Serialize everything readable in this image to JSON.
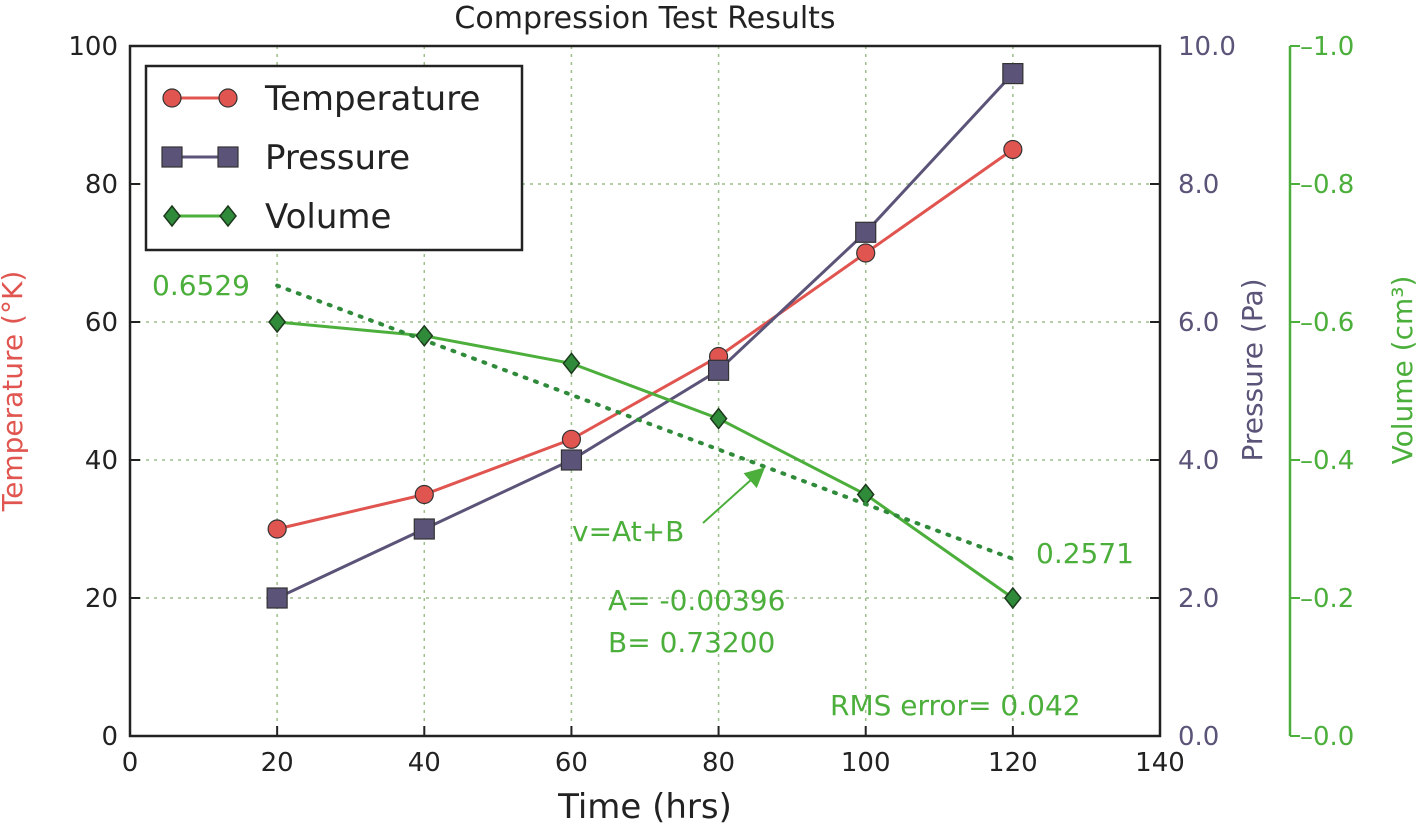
{
  "colors": {
    "temperature": "#e05550",
    "pressure": "#5b5478",
    "volume": "#4caf3c",
    "volume_marker": "#2f8a3a",
    "grid": "#9cbf8c",
    "axis": "#222222"
  },
  "chart_data": {
    "type": "line",
    "title": "Compression Test Results",
    "xlabel": "Time (hrs)",
    "xlim": [
      0,
      140
    ],
    "xticks": [
      "0",
      "20",
      "40",
      "60",
      "80",
      "100",
      "120",
      "140"
    ],
    "grid": true,
    "legend_position": "top-left",
    "axes": {
      "left": {
        "label": "Temperature (°K)",
        "ylim": [
          0,
          100
        ],
        "ticks": [
          "0",
          "20",
          "40",
          "60",
          "80",
          "100"
        ]
      },
      "right1": {
        "label": "Pressure (Pa)",
        "ylim": [
          0,
          10
        ],
        "ticks": [
          "0.0",
          "2.0",
          "4.0",
          "6.0",
          "8.0",
          "10.0"
        ]
      },
      "right2": {
        "label": "Volume (cm³)",
        "ylim": [
          0,
          1
        ],
        "ticks": [
          "–0.0",
          "–0.2",
          "–0.4",
          "–0.6",
          "–0.8",
          "–1.0"
        ]
      }
    },
    "x": [
      20,
      40,
      60,
      80,
      100,
      120
    ],
    "series": [
      {
        "name": "Temperature",
        "axis": "left",
        "marker": "circle",
        "values": [
          30,
          35,
          43,
          55,
          70,
          85
        ]
      },
      {
        "name": "Pressure",
        "axis": "right1",
        "marker": "square",
        "values": [
          2.0,
          3.0,
          4.0,
          5.3,
          7.3,
          9.6
        ]
      },
      {
        "name": "Volume",
        "axis": "right2",
        "marker": "diamond",
        "values": [
          0.6,
          0.58,
          0.54,
          0.46,
          0.35,
          0.2
        ]
      }
    ],
    "fit": {
      "axis": "right2",
      "x_range": [
        20,
        120
      ],
      "A": -0.00396,
      "B": 0.732,
      "start_label": "0.6529",
      "end_label": "0.2571",
      "equation_label": "v=At+B",
      "a_label": "A= -0.00396",
      "b_label": "B=  0.73200",
      "rms_label": "RMS error=  0.042"
    }
  }
}
